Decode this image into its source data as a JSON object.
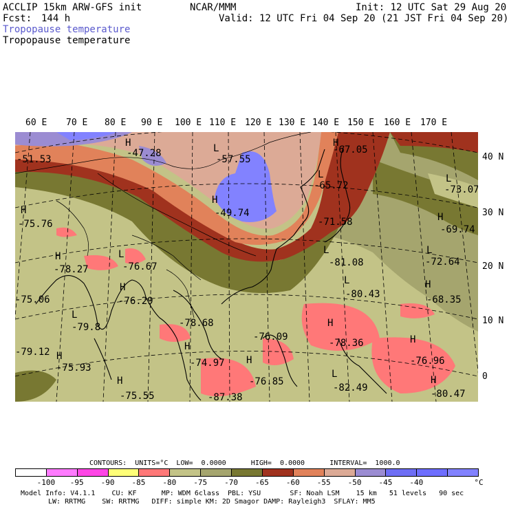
{
  "header": {
    "model": "ACCLIP 15km ARW-GFS init",
    "fcst_label": "Fcst:",
    "fcst_value": "144 h",
    "org": "NCAR/MMM",
    "init": "Init: 12 UTC Sat 29 Aug 20",
    "valid": "Valid: 12 UTC Fri 04 Sep 20 (21 JST Fri 04 Sep 20)",
    "field_shaded": "Tropopause temperature",
    "field_contour": "Tropopause temperature",
    "field_shaded_color": "#5a5acd"
  },
  "lon_labels": [
    "60 E",
    "70 E",
    "80 E",
    "90 E",
    "100 E",
    "110 E",
    "120 E",
    "130 E",
    "140 E",
    "150 E",
    "160 E",
    "170 E"
  ],
  "lat_labels": [
    "40 N",
    "30 N",
    "20 N",
    "10 N",
    "0"
  ],
  "map_labels": [
    {
      "text": "-51.53",
      "kind": "value"
    },
    {
      "text": "H",
      "kind": "high"
    },
    {
      "text": "-47.28",
      "kind": "value"
    },
    {
      "text": "L",
      "kind": "low"
    },
    {
      "text": "-57.55",
      "kind": "value"
    },
    {
      "text": "H",
      "kind": "high"
    },
    {
      "text": "-67.05",
      "kind": "value"
    },
    {
      "text": "H",
      "kind": "high"
    },
    {
      "text": "-49.74",
      "kind": "value"
    },
    {
      "text": "L",
      "kind": "low"
    },
    {
      "text": "-65.72",
      "kind": "value"
    },
    {
      "text": "L",
      "kind": "low"
    },
    {
      "text": "-73.07",
      "kind": "value"
    },
    {
      "text": "H",
      "kind": "high"
    },
    {
      "text": "-75.76",
      "kind": "value"
    },
    {
      "text": "-71.58",
      "kind": "value"
    },
    {
      "text": "H",
      "kind": "high"
    },
    {
      "text": "-69.74",
      "kind": "value"
    },
    {
      "text": "H",
      "kind": "high"
    },
    {
      "text": "-78.27",
      "kind": "value"
    },
    {
      "text": "L",
      "kind": "low"
    },
    {
      "text": "-76.67",
      "kind": "value"
    },
    {
      "text": "L",
      "kind": "low"
    },
    {
      "text": "-81.08",
      "kind": "value"
    },
    {
      "text": "L",
      "kind": "low"
    },
    {
      "text": "-72.64",
      "kind": "value"
    },
    {
      "text": "-75.06",
      "kind": "value"
    },
    {
      "text": "H",
      "kind": "high"
    },
    {
      "text": "-76.29",
      "kind": "value"
    },
    {
      "text": "L",
      "kind": "low"
    },
    {
      "text": "-80.43",
      "kind": "value"
    },
    {
      "text": "H",
      "kind": "high"
    },
    {
      "text": "-68.35",
      "kind": "value"
    },
    {
      "text": "L",
      "kind": "low"
    },
    {
      "text": "-79.8",
      "kind": "value"
    },
    {
      "text": "-78.68",
      "kind": "value"
    },
    {
      "text": "-76.09",
      "kind": "value"
    },
    {
      "text": "H",
      "kind": "high"
    },
    {
      "text": "-78.36",
      "kind": "value"
    },
    {
      "text": "-79.12",
      "kind": "value"
    },
    {
      "text": "H",
      "kind": "high"
    },
    {
      "text": "-75.93",
      "kind": "value"
    },
    {
      "text": "H",
      "kind": "high"
    },
    {
      "text": "-74.97",
      "kind": "value"
    },
    {
      "text": "H",
      "kind": "high"
    },
    {
      "text": "-76.96",
      "kind": "value"
    },
    {
      "text": "H",
      "kind": "high"
    },
    {
      "text": "-76.85",
      "kind": "value"
    },
    {
      "text": "L",
      "kind": "low"
    },
    {
      "text": "-82.49",
      "kind": "value"
    },
    {
      "text": "H",
      "kind": "high"
    },
    {
      "text": "-75.55",
      "kind": "value"
    },
    {
      "text": "-87.38",
      "kind": "value"
    },
    {
      "text": "H",
      "kind": "high"
    },
    {
      "text": "-80.47",
      "kind": "value"
    }
  ],
  "contours_line": "CONTOURS:  UNITS=°C  LOW=  0.0000      HIGH=  0.0000      INTERVAL=  1000.0",
  "colorbar": {
    "colors": [
      "#ffffff",
      "#ff7bff",
      "#ff46e6",
      "#ffff78",
      "#ff7878",
      "#c3c387",
      "#a5a56e",
      "#787832",
      "#a0321e",
      "#e1825a",
      "#dcaa96",
      "#9b8cd2",
      "#6e6ef5",
      "#6e6eff",
      "#8282ff"
    ],
    "labels": [
      "-100",
      "-95",
      "-90",
      "-85",
      "-80",
      "-75",
      "-70",
      "-65",
      "-60",
      "-55",
      "-50",
      "-45",
      "-40"
    ],
    "unit": "°C"
  },
  "footer": {
    "line1": "Model Info: V4.1.1    CU: KF      MP: WDM 6class  PBL: YSU       SF: Noah LSM    15 km   51 levels   90 sec",
    "line2": "LW: RRTMG    SW: RRTMG   DIFF: simple KM: 2D Smagor DAMP: Rayleigh3  SFLAY: MM5"
  }
}
